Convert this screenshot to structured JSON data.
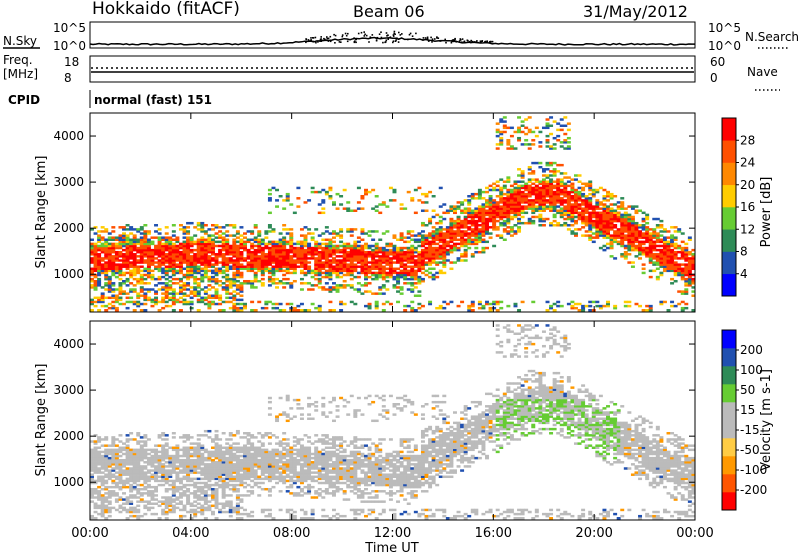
{
  "header": {
    "station": "Hokkaido (fitACF)",
    "beam": "Beam 06",
    "date": "31/May/2012"
  },
  "top_panel": {
    "left_label": "N.Sky",
    "right_label": "N.Search",
    "left_ticks": [
      "10^5",
      "10^0"
    ],
    "right_ticks": [
      "10^5",
      "10^0"
    ]
  },
  "freq_panel": {
    "left_label_1": "Freq.",
    "left_label_2": "[MHz]",
    "right_label": "Nave",
    "left_ticks": [
      "18",
      "8"
    ],
    "right_ticks": [
      "60",
      "0"
    ]
  },
  "cpid": {
    "label": "CPID",
    "value": "normal (fast) 151"
  },
  "x_axis": {
    "title": "Time UT",
    "ticks": [
      "00:00",
      "04:00",
      "08:00",
      "12:00",
      "16:00",
      "20:00",
      "00:00"
    ]
  },
  "colors": {
    "power": [
      "#0000ff",
      "#2050b0",
      "#2e8b57",
      "#66cc33",
      "#ffcc00",
      "#ff8800",
      "#ff5000",
      "#ff0000"
    ],
    "velocity": [
      "#ff0000",
      "#ff5500",
      "#ff9900",
      "#ffcc44",
      "#bbbbbb",
      "#bbbbbb",
      "#66cc33",
      "#2e8b57",
      "#2050b0",
      "#0000ff"
    ]
  },
  "chart_data": [
    {
      "type": "heatmap",
      "title": "",
      "xlabel": "Time UT",
      "ylabel": "Slant Range [km]",
      "x_range": [
        "00:00",
        "24:00"
      ],
      "ylim": [
        180,
        4500
      ],
      "y_ticks": [
        "1000",
        "2000",
        "3000",
        "4000"
      ],
      "colorbar": {
        "label": "Power [dB]",
        "ticks": [
          "28",
          "24",
          "20",
          "16",
          "12",
          "8",
          "4"
        ]
      },
      "features": [
        {
          "band": "main echo",
          "time_start": 0,
          "time_end": 24,
          "range_start_km": 900,
          "range_end_km": 2700,
          "level_db": 28
        }
      ]
    },
    {
      "type": "heatmap",
      "title": "",
      "xlabel": "Time UT",
      "ylabel": "Slant Range [km]",
      "x_range": [
        "00:00",
        "24:00"
      ],
      "ylim": [
        180,
        4500
      ],
      "y_ticks": [
        "1000",
        "2000",
        "3000",
        "4000"
      ],
      "colorbar": {
        "label": "Velocity [m s-1]",
        "ticks": [
          "200",
          "100",
          "50",
          "15",
          "-15",
          "-50",
          "-100",
          "-200"
        ]
      }
    }
  ]
}
